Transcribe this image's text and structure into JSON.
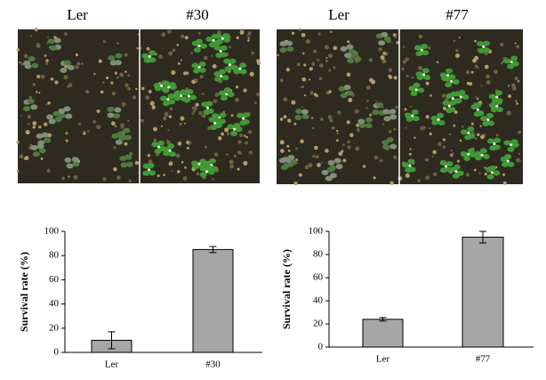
{
  "photos": [
    {
      "labels": [
        "Ler",
        "#30"
      ]
    },
    {
      "labels": [
        "Ler",
        "#77"
      ]
    }
  ],
  "chart_data": [
    {
      "type": "bar",
      "ylabel": "Survival rate (%)",
      "categories": [
        "Ler",
        "#30"
      ],
      "values": [
        10,
        85
      ],
      "errors": [
        7,
        2.5
      ],
      "color": "#a6a6a6",
      "ylim": [
        0,
        100
      ],
      "yticks": [
        0,
        20,
        40,
        60,
        80,
        100
      ]
    },
    {
      "type": "bar",
      "ylabel": "Survival rate (%)",
      "categories": [
        "Ler",
        "#77"
      ],
      "values": [
        24,
        95
      ],
      "errors": [
        1.5,
        5
      ],
      "color": "#a6a6a6",
      "ylim": [
        0,
        100
      ],
      "yticks": [
        0,
        20,
        40,
        60,
        80,
        100
      ]
    }
  ]
}
